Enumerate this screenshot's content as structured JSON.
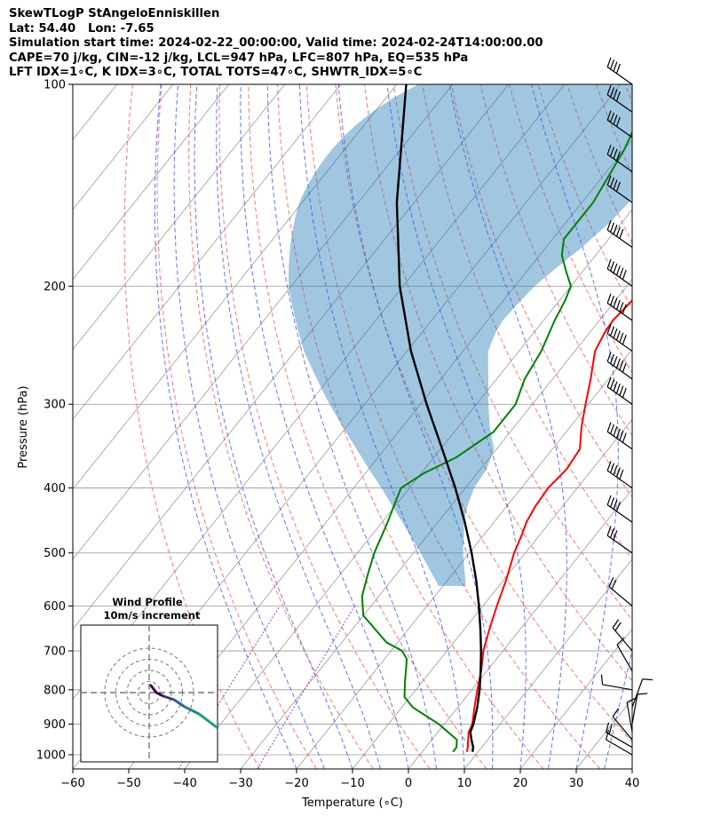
{
  "header": {
    "line1": "SkewTLogP StAngeloEnniskillen",
    "line2": "Lat: 54.40   Lon: -7.65",
    "line3": "Simulation start time: 2024-02-22_00:00:00, Valid time: 2024-02-24T14:00:00.00",
    "line4": "CAPE=70 j/kg, CIN=-12 j/kg, LCL=947 hPa, LFC=807 hPa, EQ=535 hPa",
    "line5": "LFT IDX=1∘C, K IDX=3∘C, TOTAL TOTS=47∘C, SHWTR_IDX=5∘C"
  },
  "colors": {
    "temperature": "#ff0000",
    "dewpoint": "#008000",
    "parcel": "#000000",
    "cape_fill": "#1f77b4",
    "dry_adiabat": "#ff5555",
    "moist_adiabat": "#3344ff",
    "mixing_ratio": "#9944cc",
    "isotherm": "#999999"
  },
  "chart_data": {
    "type": "skew-t log-p",
    "xlabel": "Temperature (∘C)",
    "ylabel": "Pressure (hPa)",
    "xlim": [
      -60,
      40
    ],
    "ylim": [
      1050,
      100
    ],
    "x_ticks": [
      -60,
      -50,
      -40,
      -30,
      -20,
      -10,
      0,
      10,
      20,
      30,
      40
    ],
    "y_ticks": [
      100,
      200,
      300,
      400,
      500,
      600,
      700,
      800,
      900,
      1000
    ],
    "grid": true,
    "pressure_log_scale": true,
    "temperature_profile": {
      "p": [
        990,
        975,
        950,
        925,
        900,
        850,
        800,
        750,
        700,
        650,
        600,
        550,
        500,
        470,
        450,
        425,
        400,
        375,
        350,
        325,
        300,
        275,
        250,
        235,
        225,
        200,
        175,
        160,
        150,
        135,
        125,
        115,
        107,
        100
      ],
      "t": [
        8,
        7.5,
        6.5,
        5.5,
        5,
        3,
        1,
        -1,
        -3.5,
        -5.5,
        -7.5,
        -9.5,
        -12,
        -13.2,
        -14.2,
        -14.9,
        -15.2,
        -14.6,
        -15.1,
        -17.9,
        -20.5,
        -23.2,
        -26.4,
        -27.3,
        -27.6,
        -26.6,
        -24.2,
        -23.6,
        -24.2,
        -25.8,
        -27.2,
        -27.6,
        -27.8,
        -27.2
      ]
    },
    "dewpoint_profile": {
      "p": [
        990,
        975,
        950,
        900,
        850,
        820,
        780,
        720,
        700,
        680,
        620,
        580,
        540,
        500,
        450,
        420,
        400,
        380,
        360,
        330,
        300,
        275,
        250,
        225,
        210,
        200,
        190,
        180,
        175,
        170,
        150,
        125,
        100
      ],
      "d": [
        5.5,
        5.5,
        4.5,
        -1,
        -8,
        -11,
        -13,
        -16,
        -18,
        -22,
        -30,
        -33,
        -35,
        -37,
        -39,
        -40.5,
        -41.5,
        -39.5,
        -36,
        -33,
        -33,
        -35,
        -36,
        -38,
        -39,
        -40,
        -43,
        -46,
        -47,
        -48,
        -48,
        -50,
        -54
      ]
    },
    "parcel_profile": {
      "p": [
        990,
        975,
        950,
        925,
        900,
        850,
        800,
        750,
        700,
        650,
        600,
        550,
        500,
        450,
        400,
        350,
        300,
        250,
        200,
        150,
        100
      ],
      "t": [
        9,
        8.5,
        7.1,
        5.8,
        5.2,
        3.5,
        1.4,
        -1.1,
        -3.9,
        -7.1,
        -10.7,
        -14.8,
        -19.6,
        -25.2,
        -31.8,
        -39.7,
        -48.9,
        -59.3,
        -70.6,
        -83.1,
        -98.3
      ]
    },
    "cape_shading": "between parcel and temperature where parcel is warmer",
    "wind_barbs": [
      {
        "p": 1000,
        "speed_kt": 10,
        "dir_deg": 300
      },
      {
        "p": 975,
        "speed_kt": 20,
        "dir_deg": 300
      },
      {
        "p": 950,
        "speed_kt": 10,
        "dir_deg": 320
      },
      {
        "p": 925,
        "speed_kt": 10,
        "dir_deg": 350
      },
      {
        "p": 900,
        "speed_kt": 10,
        "dir_deg": 10
      },
      {
        "p": 850,
        "speed_kt": 10,
        "dir_deg": 20
      },
      {
        "p": 800,
        "speed_kt": 10,
        "dir_deg": 280
      },
      {
        "p": 750,
        "speed_kt": 10,
        "dir_deg": 330
      },
      {
        "p": 700,
        "speed_kt": 20,
        "dir_deg": 320
      },
      {
        "p": 600,
        "speed_kt": 20,
        "dir_deg": 310
      },
      {
        "p": 500,
        "speed_kt": 30,
        "dir_deg": 305
      },
      {
        "p": 450,
        "speed_kt": 40,
        "dir_deg": 305
      },
      {
        "p": 400,
        "speed_kt": 50,
        "dir_deg": 305
      },
      {
        "p": 350,
        "speed_kt": 60,
        "dir_deg": 305
      },
      {
        "p": 300,
        "speed_kt": 60,
        "dir_deg": 305
      },
      {
        "p": 275,
        "speed_kt": 60,
        "dir_deg": 305
      },
      {
        "p": 250,
        "speed_kt": 60,
        "dir_deg": 305
      },
      {
        "p": 225,
        "speed_kt": 60,
        "dir_deg": 305
      },
      {
        "p": 200,
        "speed_kt": 60,
        "dir_deg": 305
      },
      {
        "p": 175,
        "speed_kt": 50,
        "dir_deg": 305
      },
      {
        "p": 150,
        "speed_kt": 40,
        "dir_deg": 305
      },
      {
        "p": 135,
        "speed_kt": 40,
        "dir_deg": 305
      },
      {
        "p": 120,
        "speed_kt": 40,
        "dir_deg": 305
      },
      {
        "p": 110,
        "speed_kt": 40,
        "dir_deg": 305
      },
      {
        "p": 100,
        "speed_kt": 40,
        "dir_deg": 305
      }
    ],
    "hodograph": {
      "title_line1": "Wind Profile",
      "title_line2": "10m/s increment",
      "ring_spacing_ms": 10,
      "rings": 4,
      "u": [
        0.5,
        2,
        4,
        7,
        10,
        14,
        18,
        22,
        26,
        29,
        31
      ],
      "v": [
        2,
        0,
        -1,
        -2,
        -4,
        -6,
        -9,
        -12,
        -15,
        -17,
        -19
      ]
    }
  }
}
